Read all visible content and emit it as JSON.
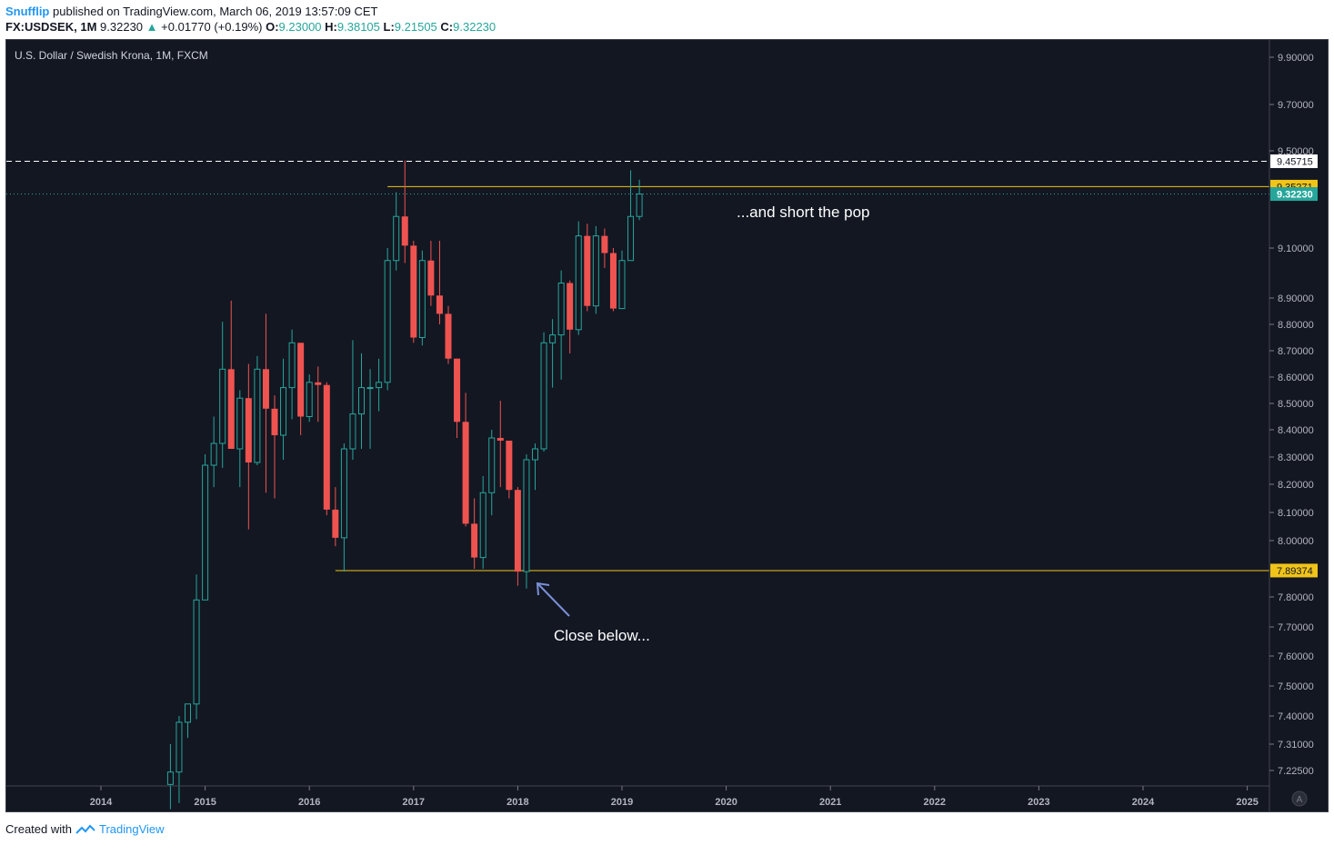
{
  "header": {
    "author": "Snufflip",
    "published_text": "published on TradingView.com, March 06, 2019 13:57:09 CET",
    "symbol": "FX:USDSEK, 1M",
    "price": "9.32230",
    "change_arrow": "▲",
    "change": "+0.01770 (+0.19%)",
    "o_label": "O:",
    "o_value": "9.23000",
    "h_label": "H:",
    "h_value": "9.38105",
    "l_label": "L:",
    "l_value": "9.21505",
    "c_label": "C:",
    "c_value": "9.32230"
  },
  "footer": {
    "created_with": "Created with",
    "brand": "TradingView"
  },
  "colors": {
    "background": "#131722",
    "up": "#26a69a",
    "down": "#ef5350",
    "level_line": "#f0c419",
    "current_price": "#26a69a",
    "arrow": "#7b8fd8"
  },
  "chart_data": {
    "type": "candlestick",
    "title": "U.S. Dollar / Swedish Krona, 1M, FXCM",
    "x_ticks": [
      "2014",
      "2015",
      "2016",
      "2017",
      "2018",
      "2019",
      "2020",
      "2021",
      "2022",
      "2023",
      "2024",
      "2025"
    ],
    "y_ticks": [
      "9.90000",
      "9.70000",
      "9.50000",
      "9.10000",
      "8.90000",
      "8.80000",
      "8.70000",
      "8.60000",
      "8.50000",
      "8.40000",
      "8.30000",
      "8.20000",
      "8.10000",
      "8.00000",
      "7.80000",
      "7.70000",
      "7.60000",
      "7.50000",
      "7.40000",
      "7.31000",
      "7.22500"
    ],
    "price_labels": [
      {
        "value": "9.45715",
        "style": "white"
      },
      {
        "value": "9.35271",
        "style": "yellow"
      },
      {
        "value": "9.32230",
        "style": "teal"
      },
      {
        "value": "7.89374",
        "style": "yellow"
      }
    ],
    "levels": [
      {
        "value": 9.45715,
        "style": "dashed-white",
        "from": "2014-09"
      },
      {
        "value": 9.35271,
        "style": "yellow",
        "from": "2016-10"
      },
      {
        "value": 9.3223,
        "style": "dotted-teal",
        "from": "2014-09"
      },
      {
        "value": 7.89374,
        "style": "yellow",
        "from": "2016-04"
      }
    ],
    "annotations": [
      {
        "text": "...and short the pop"
      },
      {
        "text": "Close below..."
      }
    ],
    "candles": [
      {
        "d": "2014-09",
        "o": 7.18,
        "h": 7.31,
        "l": 7.1,
        "c": 7.22
      },
      {
        "d": "2014-10",
        "o": 7.22,
        "h": 7.4,
        "l": 7.12,
        "c": 7.38
      },
      {
        "d": "2014-11",
        "o": 7.38,
        "h": 7.44,
        "l": 7.33,
        "c": 7.44
      },
      {
        "d": "2014-12",
        "o": 7.44,
        "h": 7.88,
        "l": 7.39,
        "c": 7.79
      },
      {
        "d": "2015-01",
        "o": 7.79,
        "h": 8.31,
        "l": 7.79,
        "c": 8.27
      },
      {
        "d": "2015-02",
        "o": 8.27,
        "h": 8.45,
        "l": 8.19,
        "c": 8.35
      },
      {
        "d": "2015-03",
        "o": 8.35,
        "h": 8.81,
        "l": 8.26,
        "c": 8.63
      },
      {
        "d": "2015-04",
        "o": 8.63,
        "h": 8.89,
        "l": 8.33,
        "c": 8.33
      },
      {
        "d": "2015-05",
        "o": 8.33,
        "h": 8.55,
        "l": 8.19,
        "c": 8.52
      },
      {
        "d": "2015-06",
        "o": 8.52,
        "h": 8.65,
        "l": 8.04,
        "c": 8.28
      },
      {
        "d": "2015-07",
        "o": 8.28,
        "h": 8.68,
        "l": 8.27,
        "c": 8.63
      },
      {
        "d": "2015-08",
        "o": 8.63,
        "h": 8.84,
        "l": 8.17,
        "c": 8.48
      },
      {
        "d": "2015-09",
        "o": 8.48,
        "h": 8.53,
        "l": 8.15,
        "c": 8.38
      },
      {
        "d": "2015-10",
        "o": 8.38,
        "h": 8.67,
        "l": 8.29,
        "c": 8.56
      },
      {
        "d": "2015-11",
        "o": 8.56,
        "h": 8.78,
        "l": 8.44,
        "c": 8.73
      },
      {
        "d": "2015-12",
        "o": 8.73,
        "h": 8.73,
        "l": 8.38,
        "c": 8.45
      },
      {
        "d": "2016-01",
        "o": 8.45,
        "h": 8.61,
        "l": 8.43,
        "c": 8.58
      },
      {
        "d": "2016-02",
        "o": 8.58,
        "h": 8.64,
        "l": 8.43,
        "c": 8.57
      },
      {
        "d": "2016-03",
        "o": 8.57,
        "h": 8.58,
        "l": 8.09,
        "c": 8.11
      },
      {
        "d": "2016-04",
        "o": 8.11,
        "h": 8.19,
        "l": 7.98,
        "c": 8.01
      },
      {
        "d": "2016-05",
        "o": 8.01,
        "h": 8.35,
        "l": 7.89,
        "c": 8.33
      },
      {
        "d": "2016-06",
        "o": 8.33,
        "h": 8.74,
        "l": 8.29,
        "c": 8.46
      },
      {
        "d": "2016-07",
        "o": 8.46,
        "h": 8.69,
        "l": 8.33,
        "c": 8.56
      },
      {
        "d": "2016-08",
        "o": 8.56,
        "h": 8.63,
        "l": 8.33,
        "c": 8.56
      },
      {
        "d": "2016-09",
        "o": 8.56,
        "h": 8.67,
        "l": 8.47,
        "c": 8.58
      },
      {
        "d": "2016-10",
        "o": 8.58,
        "h": 9.1,
        "l": 8.55,
        "c": 9.05
      },
      {
        "d": "2016-11",
        "o": 9.05,
        "h": 9.33,
        "l": 9.01,
        "c": 9.23
      },
      {
        "d": "2016-12",
        "o": 9.23,
        "h": 9.46,
        "l": 9.04,
        "c": 9.11
      },
      {
        "d": "2017-01",
        "o": 9.11,
        "h": 9.13,
        "l": 8.73,
        "c": 8.75
      },
      {
        "d": "2017-02",
        "o": 8.75,
        "h": 9.09,
        "l": 8.72,
        "c": 9.05
      },
      {
        "d": "2017-03",
        "o": 9.05,
        "h": 9.13,
        "l": 8.87,
        "c": 8.91
      },
      {
        "d": "2017-04",
        "o": 8.91,
        "h": 9.13,
        "l": 8.8,
        "c": 8.84
      },
      {
        "d": "2017-05",
        "o": 8.84,
        "h": 8.87,
        "l": 8.65,
        "c": 8.67
      },
      {
        "d": "2017-06",
        "o": 8.67,
        "h": 8.67,
        "l": 8.37,
        "c": 8.43
      },
      {
        "d": "2017-07",
        "o": 8.43,
        "h": 8.54,
        "l": 8.05,
        "c": 8.06
      },
      {
        "d": "2017-08",
        "o": 8.06,
        "h": 8.15,
        "l": 7.9,
        "c": 7.94
      },
      {
        "d": "2017-09",
        "o": 7.94,
        "h": 8.23,
        "l": 7.9,
        "c": 8.17
      },
      {
        "d": "2017-10",
        "o": 8.17,
        "h": 8.4,
        "l": 8.09,
        "c": 8.37
      },
      {
        "d": "2017-11",
        "o": 8.37,
        "h": 8.51,
        "l": 8.19,
        "c": 8.36
      },
      {
        "d": "2017-12",
        "o": 8.36,
        "h": 8.36,
        "l": 8.15,
        "c": 8.18
      },
      {
        "d": "2018-01",
        "o": 8.18,
        "h": 8.19,
        "l": 7.84,
        "c": 7.89
      },
      {
        "d": "2018-02",
        "o": 7.89,
        "h": 8.31,
        "l": 7.83,
        "c": 8.29
      },
      {
        "d": "2018-03",
        "o": 8.29,
        "h": 8.35,
        "l": 8.18,
        "c": 8.33
      },
      {
        "d": "2018-04",
        "o": 8.33,
        "h": 8.77,
        "l": 8.32,
        "c": 8.73
      },
      {
        "d": "2018-05",
        "o": 8.73,
        "h": 8.82,
        "l": 8.56,
        "c": 8.76
      },
      {
        "d": "2018-06",
        "o": 8.76,
        "h": 9.01,
        "l": 8.59,
        "c": 8.96
      },
      {
        "d": "2018-07",
        "o": 8.96,
        "h": 8.97,
        "l": 8.69,
        "c": 8.78
      },
      {
        "d": "2018-08",
        "o": 8.78,
        "h": 9.21,
        "l": 8.76,
        "c": 9.15
      },
      {
        "d": "2018-09",
        "o": 9.15,
        "h": 9.2,
        "l": 8.85,
        "c": 8.87
      },
      {
        "d": "2018-10",
        "o": 8.87,
        "h": 9.19,
        "l": 8.84,
        "c": 9.15
      },
      {
        "d": "2018-11",
        "o": 9.15,
        "h": 9.18,
        "l": 9.02,
        "c": 9.08
      },
      {
        "d": "2018-12",
        "o": 9.08,
        "h": 9.1,
        "l": 8.85,
        "c": 8.86
      },
      {
        "d": "2019-01",
        "o": 8.86,
        "h": 9.09,
        "l": 8.86,
        "c": 9.05
      },
      {
        "d": "2019-02",
        "o": 9.05,
        "h": 9.42,
        "l": 9.05,
        "c": 9.23
      },
      {
        "d": "2019-03",
        "o": 9.23,
        "h": 9.38105,
        "l": 9.21505,
        "c": 9.3223
      }
    ]
  }
}
